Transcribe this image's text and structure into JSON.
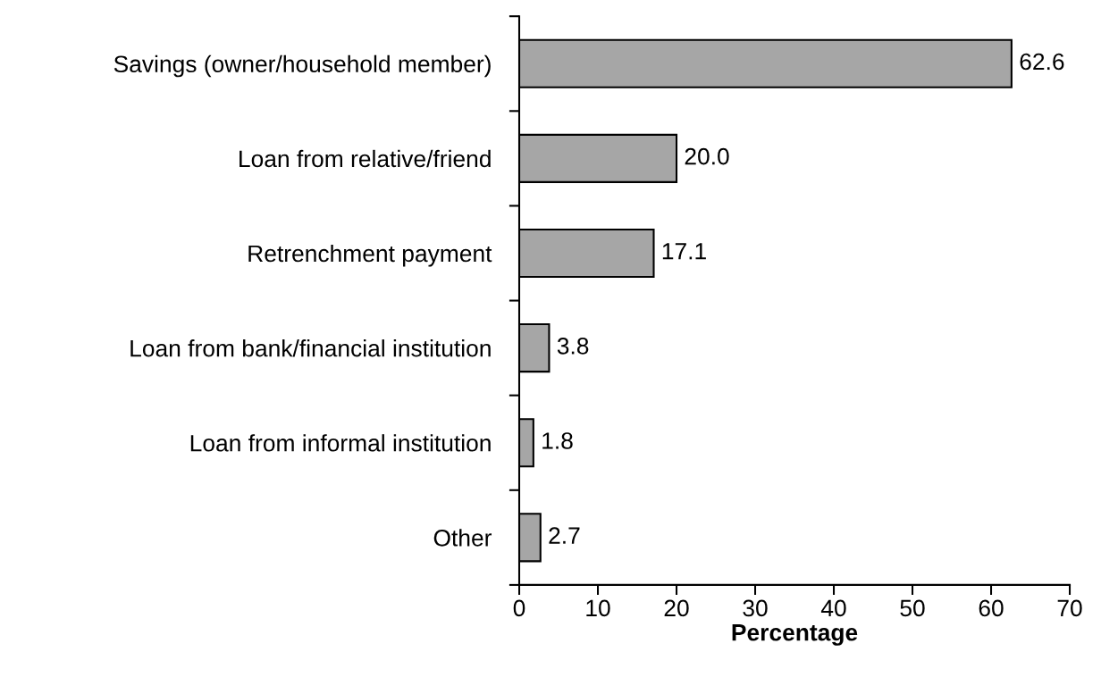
{
  "chart_data": {
    "type": "bar",
    "orientation": "horizontal",
    "xlabel": "Percentage",
    "categories": [
      "Savings (owner/household member)",
      "Loan from relative/friend",
      "Retrenchment payment",
      "Loan from bank/financial institution",
      "Loan from informal institution",
      "Other"
    ],
    "values": [
      62.6,
      20.0,
      17.1,
      3.8,
      1.8,
      2.7
    ],
    "value_labels": [
      "62.6",
      "20.0",
      "17.1",
      "3.8",
      "1.8",
      "2.7"
    ],
    "color": "#a6a6a6",
    "xlim": [
      0,
      70
    ],
    "xticks": [
      0,
      10,
      20,
      30,
      40,
      50,
      60,
      70
    ],
    "grid": false,
    "legend": false
  }
}
